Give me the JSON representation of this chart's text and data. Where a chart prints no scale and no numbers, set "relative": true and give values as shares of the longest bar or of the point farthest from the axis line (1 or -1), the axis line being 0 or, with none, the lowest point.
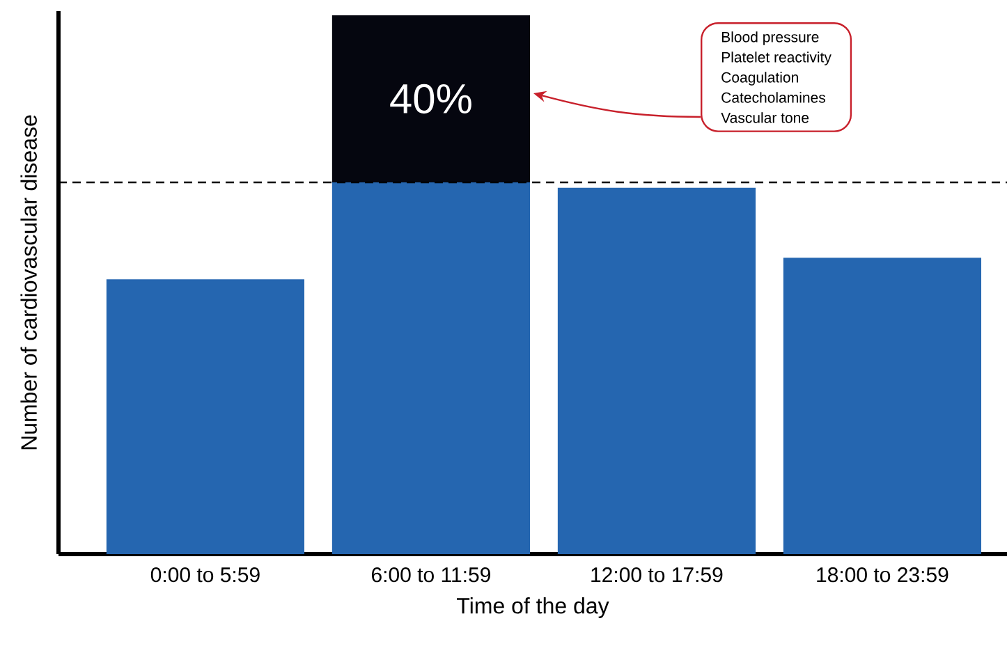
{
  "chart_data": {
    "type": "bar",
    "xlabel": "Time of the day",
    "ylabel": "Number of cardiovascular disease",
    "categories": [
      "0:00 to 5:59",
      "6:00 to 11:59",
      "12:00 to 17:59",
      "18:00 to 23:59"
    ],
    "relative": true,
    "stacked": true,
    "series": [
      {
        "color": "#2566b0",
        "values": [
          0.51,
          0.69,
          0.68,
          0.55
        ]
      },
      {
        "color": "#05060f",
        "values": [
          null,
          0.31,
          null,
          null
        ]
      }
    ],
    "ref_lines": [
      {
        "axis": "y",
        "value": 0.69,
        "line_style": "dashed"
      }
    ],
    "annotations": [
      "40%",
      "Blood pressure",
      "Platelet reactivity",
      "Coagulation",
      "Catecholamines",
      "Vascular tone"
    ]
  }
}
